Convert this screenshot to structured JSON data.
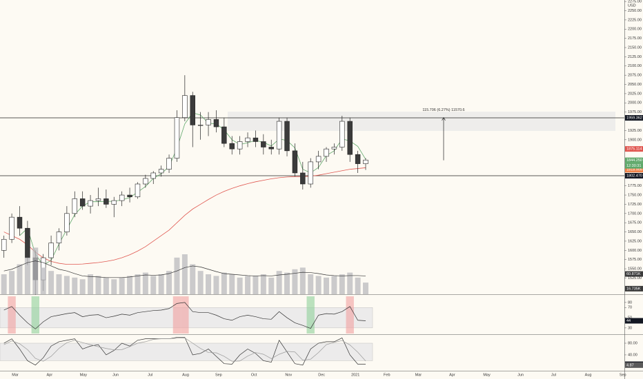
{
  "chart_data": [
    {
      "type": "candlestick",
      "unit_label": "USD",
      "categories": [
        null,
        null,
        null,
        null,
        null,
        null,
        null,
        null,
        null,
        null,
        null,
        null,
        null,
        null,
        null,
        null,
        null,
        null,
        null,
        null,
        null,
        null,
        null,
        null,
        null,
        null,
        null,
        null,
        null,
        null,
        null,
        null,
        null,
        null,
        null,
        null,
        null,
        null,
        null,
        null,
        null,
        null,
        null,
        null,
        null,
        null,
        null
      ],
      "open": [
        1600,
        1630,
        1690,
        1660,
        1580,
        1520,
        1580,
        1620,
        1650,
        1700,
        1740,
        1720,
        1735,
        1740,
        1725,
        1735,
        1750,
        1745,
        1780,
        1795,
        1810,
        1820,
        1850,
        1960,
        2020,
        1940,
        1940,
        1955,
        1935,
        1890,
        1875,
        1895,
        1905,
        1895,
        1880,
        1875,
        1950,
        1870,
        1810,
        1780,
        1840,
        1855,
        1875,
        1880,
        1950,
        1860,
        1835
      ],
      "high": [
        1640,
        1700,
        1720,
        1680,
        1600,
        1590,
        1640,
        1660,
        1720,
        1760,
        1760,
        1750,
        1770,
        1765,
        1745,
        1760,
        1770,
        1785,
        1805,
        1815,
        1830,
        1860,
        1980,
        2075,
        2030,
        1975,
        1975,
        1980,
        1960,
        1910,
        1910,
        1920,
        1925,
        1915,
        1900,
        1960,
        1960,
        1890,
        1840,
        1850,
        1870,
        1880,
        1890,
        1965,
        1960,
        1870,
        1850
      ],
      "low": [
        1580,
        1620,
        1640,
        1560,
        1480,
        1490,
        1560,
        1600,
        1640,
        1690,
        1710,
        1700,
        1720,
        1715,
        1690,
        1720,
        1730,
        1740,
        1770,
        1780,
        1800,
        1810,
        1840,
        1950,
        1880,
        1900,
        1910,
        1920,
        1880,
        1860,
        1860,
        1880,
        1880,
        1860,
        1860,
        1860,
        1855,
        1800,
        1765,
        1770,
        1820,
        1840,
        1860,
        1870,
        1840,
        1810,
        1818
      ],
      "close": [
        1630,
        1690,
        1660,
        1580,
        1520,
        1580,
        1620,
        1650,
        1700,
        1740,
        1720,
        1735,
        1740,
        1725,
        1735,
        1750,
        1745,
        1780,
        1795,
        1810,
        1820,
        1850,
        1960,
        2020,
        1940,
        1940,
        1955,
        1935,
        1890,
        1875,
        1895,
        1905,
        1895,
        1880,
        1875,
        1950,
        1870,
        1810,
        1780,
        1840,
        1855,
        1875,
        1880,
        1950,
        1860,
        1835,
        1845
      ],
      "up_color": "#ffffff",
      "down_color": "#3b3b3b",
      "edge_color": "#222222",
      "lines": [
        {
          "color": "#5fa86a",
          "values": [
            null,
            null,
            1640,
            1660,
            1590,
            1560,
            1573,
            1617,
            1657,
            1697,
            1720,
            1732,
            1732,
            1733,
            1733,
            1737,
            1743,
            1758,
            1773,
            1795,
            1808,
            1827,
            1877,
            1943,
            1973,
            1967,
            1945,
            1943,
            1927,
            1900,
            1887,
            1892,
            1898,
            1893,
            1883,
            1902,
            1898,
            1878,
            1820,
            1810,
            1825,
            1857,
            1870,
            1902,
            1897,
            1882,
            1847
          ]
        },
        {
          "color": "#e0564f",
          "values": [
            1650,
            1640,
            1630,
            1615,
            1595,
            1580,
            1570,
            1565,
            1562,
            1562,
            1563,
            1565,
            1567,
            1570,
            1574,
            1580,
            1588,
            1598,
            1610,
            1625,
            1640,
            1655,
            1675,
            1695,
            1712,
            1725,
            1738,
            1750,
            1760,
            1768,
            1775,
            1781,
            1786,
            1790,
            1794,
            1797,
            1799,
            1800,
            1800,
            1801,
            1804,
            1808,
            1812,
            1816,
            1820,
            1822,
            1824
          ]
        }
      ],
      "xlim": [
        0,
        79.4
      ],
      "xticks": [
        {
          "value": 1.93,
          "label": "Mar"
        },
        {
          "value": 6.3,
          "label": "Apr"
        },
        {
          "value": 10.6,
          "label": "May"
        },
        {
          "value": 14.7,
          "label": "Jun"
        },
        {
          "value": 19.1,
          "label": "Jul"
        },
        {
          "value": 23.6,
          "label": "Aug"
        },
        {
          "value": 27.8,
          "label": "Sep"
        },
        {
          "value": 32.3,
          "label": "Oct"
        },
        {
          "value": 36.7,
          "label": "Nov"
        },
        {
          "value": 40.9,
          "label": "Dec"
        },
        {
          "value": 45.2,
          "label": "2021"
        },
        {
          "value": 49.2,
          "label": "Feb"
        },
        {
          "value": 53.2,
          "label": "Mar"
        },
        {
          "value": 57.5,
          "label": "Apr"
        },
        {
          "value": 61.9,
          "label": "May"
        },
        {
          "value": 66.2,
          "label": "Jun"
        },
        {
          "value": 70.4,
          "label": "Jul"
        },
        {
          "value": 74.8,
          "label": "Aug"
        },
        {
          "value": 79.2,
          "label": "Sep"
        }
      ],
      "ylim": [
        1481,
        2279
      ],
      "yticks": [
        {
          "value": 1525,
          "label": "1525.00"
        },
        {
          "value": 1550,
          "label": "1550.00"
        },
        {
          "value": 1575,
          "label": "1575.00"
        },
        {
          "value": 1600,
          "label": "1600.00"
        },
        {
          "value": 1625,
          "label": "1625.00"
        },
        {
          "value": 1650,
          "label": "1650.00"
        },
        {
          "value": 1675,
          "label": "1675.00"
        },
        {
          "value": 1700,
          "label": "1700.00"
        },
        {
          "value": 1725,
          "label": "1725.00"
        },
        {
          "value": 1750,
          "label": "1750.00"
        },
        {
          "value": 1775,
          "label": "1775.00"
        },
        {
          "value": 1900,
          "label": "1900.00"
        },
        {
          "value": 1925,
          "label": "1925.00"
        },
        {
          "value": 1975,
          "label": "1975.00"
        },
        {
          "value": 2000,
          "label": "2000.00"
        },
        {
          "value": 2025,
          "label": "2025.00"
        },
        {
          "value": 2050,
          "label": "2050.00"
        },
        {
          "value": 2075,
          "label": "2075.00"
        },
        {
          "value": 2100,
          "label": "2100.00"
        },
        {
          "value": 2125,
          "label": "2125.00"
        },
        {
          "value": 2150,
          "label": "2150.00"
        },
        {
          "value": 2175,
          "label": "2175.00"
        },
        {
          "value": 2200,
          "label": "2200.00"
        },
        {
          "value": 2225,
          "label": "2225.00"
        },
        {
          "value": 2250,
          "label": "2250.00"
        },
        {
          "value": 2275,
          "label": "2275.00"
        }
      ],
      "zone": [
        1924,
        1976
      ],
      "levels": [
        1959.362,
        1802.47
      ],
      "price_tags": [
        {
          "value": 1959.362,
          "label": "1959.362",
          "color": "#131722"
        },
        {
          "value": 1875.114,
          "label": "1875.114",
          "color": "#e0564f"
        },
        {
          "value": 1844.25,
          "label": "1844.250",
          "color": "#5fa86a"
        },
        {
          "value": 1818.905,
          "label": "1818.905",
          "color": "#f0834a"
        },
        {
          "value": 1802.47,
          "label": "1802.470",
          "color": "#131722"
        }
      ],
      "countdown": "12:30:31",
      "measure": {
        "from": 1844.25,
        "to": 1959.956,
        "label": "115.706 (6.27%) 11570.6"
      }
    },
    {
      "type": "bar",
      "color": "#b9b9bd",
      "values": [
        60,
        70,
        90,
        110,
        140,
        80,
        70,
        60,
        55,
        50,
        45,
        60,
        55,
        50,
        45,
        50,
        55,
        60,
        65,
        55,
        60,
        70,
        110,
        120,
        90,
        70,
        60,
        55,
        65,
        60,
        50,
        55,
        55,
        60,
        50,
        70,
        65,
        75,
        80,
        60,
        55,
        50,
        55,
        60,
        65,
        50,
        35
      ],
      "ma": {
        "color": "#333333",
        "values": [
          70,
          75,
          85,
          95,
          100,
          95,
          85,
          75,
          70,
          62,
          55,
          53,
          52,
          50,
          50,
          50,
          52,
          55,
          58,
          57,
          58,
          62,
          70,
          80,
          85,
          82,
          75,
          68,
          62,
          60,
          58,
          56,
          55,
          56,
          55,
          58,
          60,
          63,
          66,
          65,
          62,
          58,
          56,
          55,
          56,
          56,
          55
        ]
      },
      "ylim": [
        0,
        180
      ],
      "tags": [
        {
          "value": 60.871,
          "label": "60.871K",
          "color": "#3b3b3b"
        },
        {
          "value": 16.735,
          "label": "16.735K",
          "color": "#3b3b3b"
        }
      ]
    },
    {
      "type": "line",
      "band": [
        30,
        70
      ],
      "over_color": "#f2a0a0",
      "under_color": "#8fd19a",
      "series": [
        {
          "color": "#333333",
          "values": [
            65,
            72,
            55,
            40,
            28,
            42,
            52,
            55,
            58,
            60,
            52,
            55,
            56,
            50,
            53,
            57,
            55,
            60,
            62,
            64,
            65,
            68,
            78,
            80,
            62,
            60,
            60,
            55,
            48,
            45,
            52,
            55,
            52,
            48,
            47,
            62,
            50,
            40,
            35,
            29,
            55,
            58,
            57,
            62,
            72,
            45,
            44
          ]
        }
      ],
      "ylim": [
        19,
        92
      ],
      "yticks": [
        30,
        50,
        70,
        80
      ],
      "tags": [
        {
          "value": 44,
          "label": "44",
          "color": "#131722"
        }
      ]
    },
    {
      "type": "line",
      "band": [
        20,
        80
      ],
      "series": [
        {
          "color": "#333333",
          "values": [
            80,
            95,
            60,
            20,
            5,
            30,
            70,
            85,
            90,
            95,
            60,
            70,
            75,
            40,
            55,
            80,
            70,
            90,
            95,
            95,
            95,
            95,
            100,
            100,
            40,
            45,
            60,
            35,
            10,
            8,
            40,
            60,
            45,
            20,
            15,
            90,
            50,
            10,
            5,
            60,
            80,
            85,
            85,
            98,
            40,
            8,
            8
          ]
        },
        {
          "color": "#9a9a9a",
          "values": [
            75,
            88,
            78,
            58,
            28,
            18,
            35,
            62,
            82,
            90,
            82,
            75,
            68,
            62,
            57,
            58,
            68,
            80,
            85,
            93,
            95,
            95,
            97,
            98,
            80,
            62,
            48,
            47,
            35,
            18,
            19,
            36,
            48,
            42,
            27,
            42,
            52,
            50,
            22,
            25,
            48,
            75,
            83,
            89,
            74,
            49,
            19
          ]
        }
      ],
      "ylim": [
        -12,
        106
      ],
      "yticks": [
        {
          "value": 40,
          "label": "40.00"
        },
        {
          "value": 80,
          "label": "80.00"
        }
      ],
      "tags": [
        {
          "value": 7.9,
          "label": "7.90",
          "color": "#131722"
        },
        {
          "value": 4.87,
          "label": "4.87",
          "color": "#5a5a5a"
        }
      ]
    }
  ]
}
